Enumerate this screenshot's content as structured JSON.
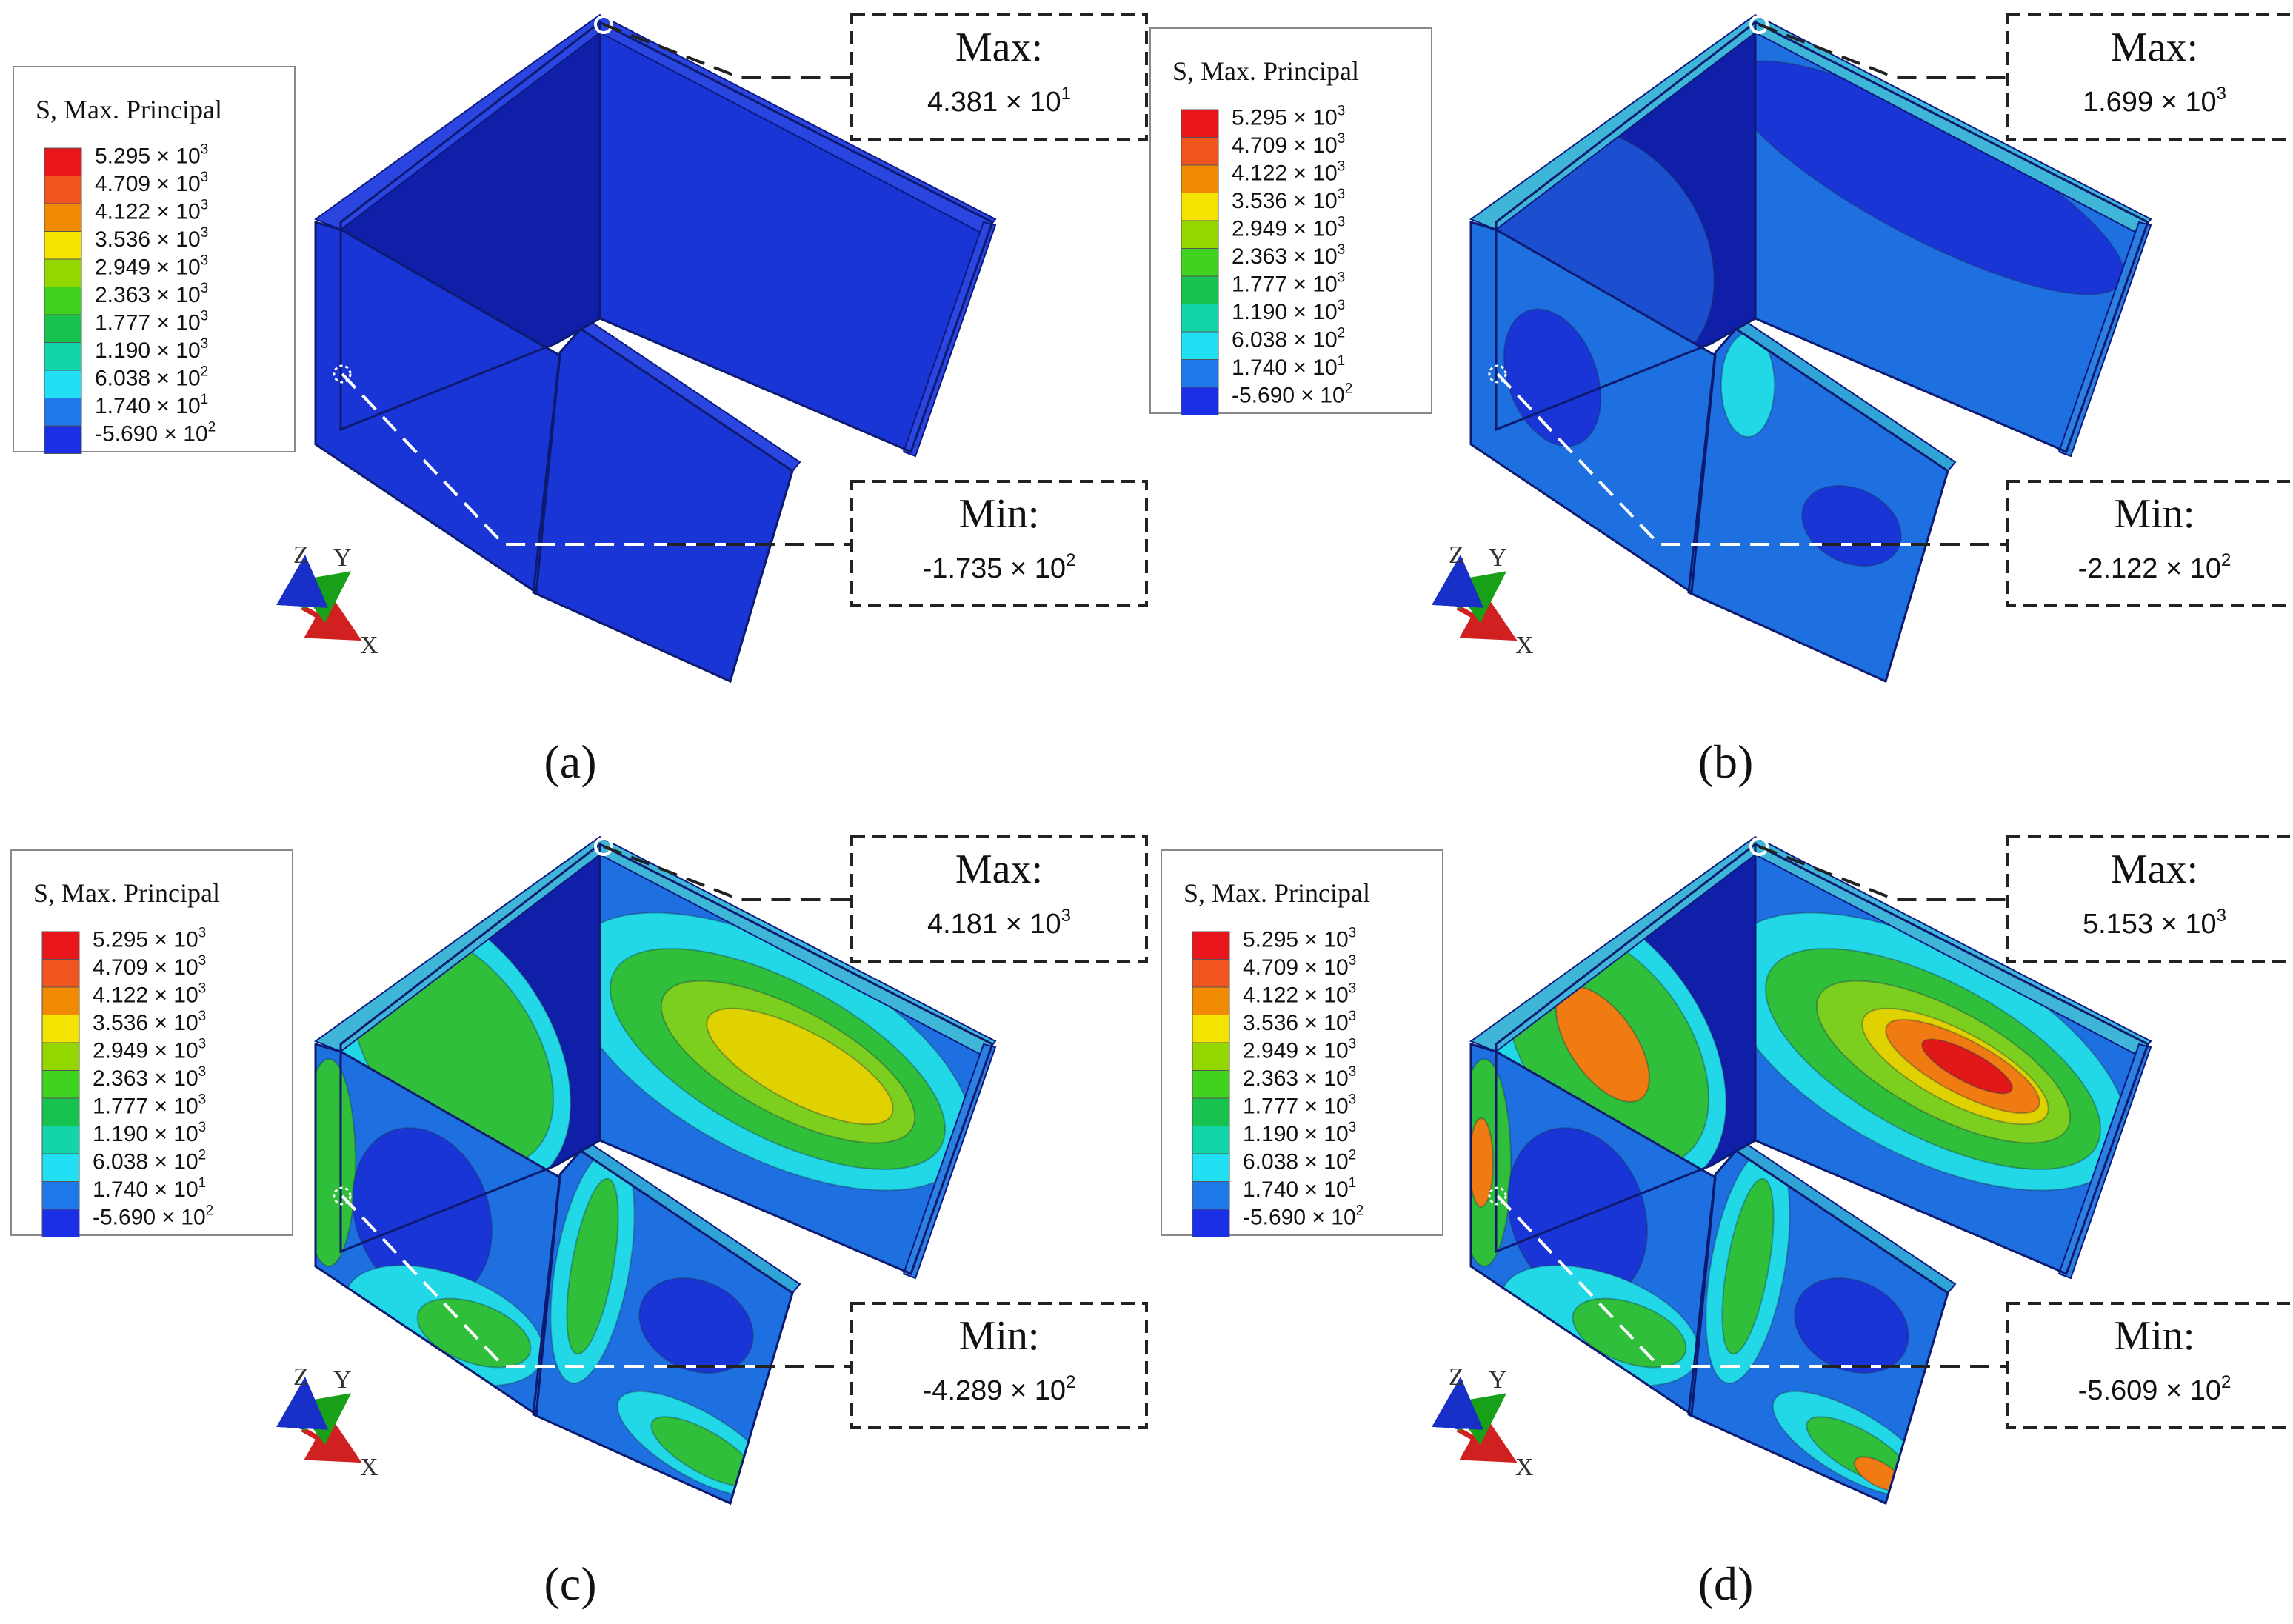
{
  "legend": {
    "title": "S, Max. Principal",
    "levels": [
      {
        "mantissa": "5.295",
        "exp": "3",
        "color": "#e8151b"
      },
      {
        "mantissa": "4.709",
        "exp": "3",
        "color": "#f0541f"
      },
      {
        "mantissa": "4.122",
        "exp": "3",
        "color": "#f08a00"
      },
      {
        "mantissa": "3.536",
        "exp": "3",
        "color": "#f2e300"
      },
      {
        "mantissa": "2.949",
        "exp": "3",
        "color": "#93d600"
      },
      {
        "mantissa": "2.363",
        "exp": "3",
        "color": "#3fd21e"
      },
      {
        "mantissa": "1.777",
        "exp": "3",
        "color": "#17c24f"
      },
      {
        "mantissa": "1.190",
        "exp": "3",
        "color": "#12d6a9"
      },
      {
        "mantissa": "6.038",
        "exp": "2",
        "color": "#22e0f4"
      },
      {
        "mantissa": "1.740",
        "exp": "1",
        "color": "#1e78e8"
      },
      {
        "mantissa": "-5.690",
        "exp": "2",
        "color": "#1a2fe6"
      }
    ],
    "times_symbol": "×",
    "base": "10"
  },
  "axes_triad": {
    "z": "Z",
    "y": "Y",
    "x": "X"
  },
  "panels": [
    {
      "id": "a",
      "label": "(a)",
      "max_label": "Max:",
      "max_mantissa": "4.381",
      "max_exp": "1",
      "min_label": "Min:",
      "min_mantissa": "-1.735",
      "min_exp": "2"
    },
    {
      "id": "b",
      "label": "(b)",
      "max_label": "Max:",
      "max_mantissa": "1.699",
      "max_exp": "3",
      "min_label": "Min:",
      "min_mantissa": "-2.122",
      "min_exp": "2"
    },
    {
      "id": "c",
      "label": "(c)",
      "max_label": "Max:",
      "max_mantissa": "4.181",
      "max_exp": "3",
      "min_label": "Min:",
      "min_mantissa": "-4.289",
      "min_exp": "2"
    },
    {
      "id": "d",
      "label": "(d)",
      "max_label": "Max:",
      "max_mantissa": "5.153",
      "max_exp": "3",
      "min_label": "Min:",
      "min_mantissa": "-5.609",
      "min_exp": "2"
    }
  ],
  "colors": {
    "base_blue": "#1a35d6",
    "mid_blue": "#1e6fe0",
    "dark_blue": "#0f1fa8",
    "cyan": "#22d8e6",
    "green": "#2fbf3a",
    "yellow": "#e0d200",
    "orange": "#ef7b12",
    "red": "#e01818"
  }
}
